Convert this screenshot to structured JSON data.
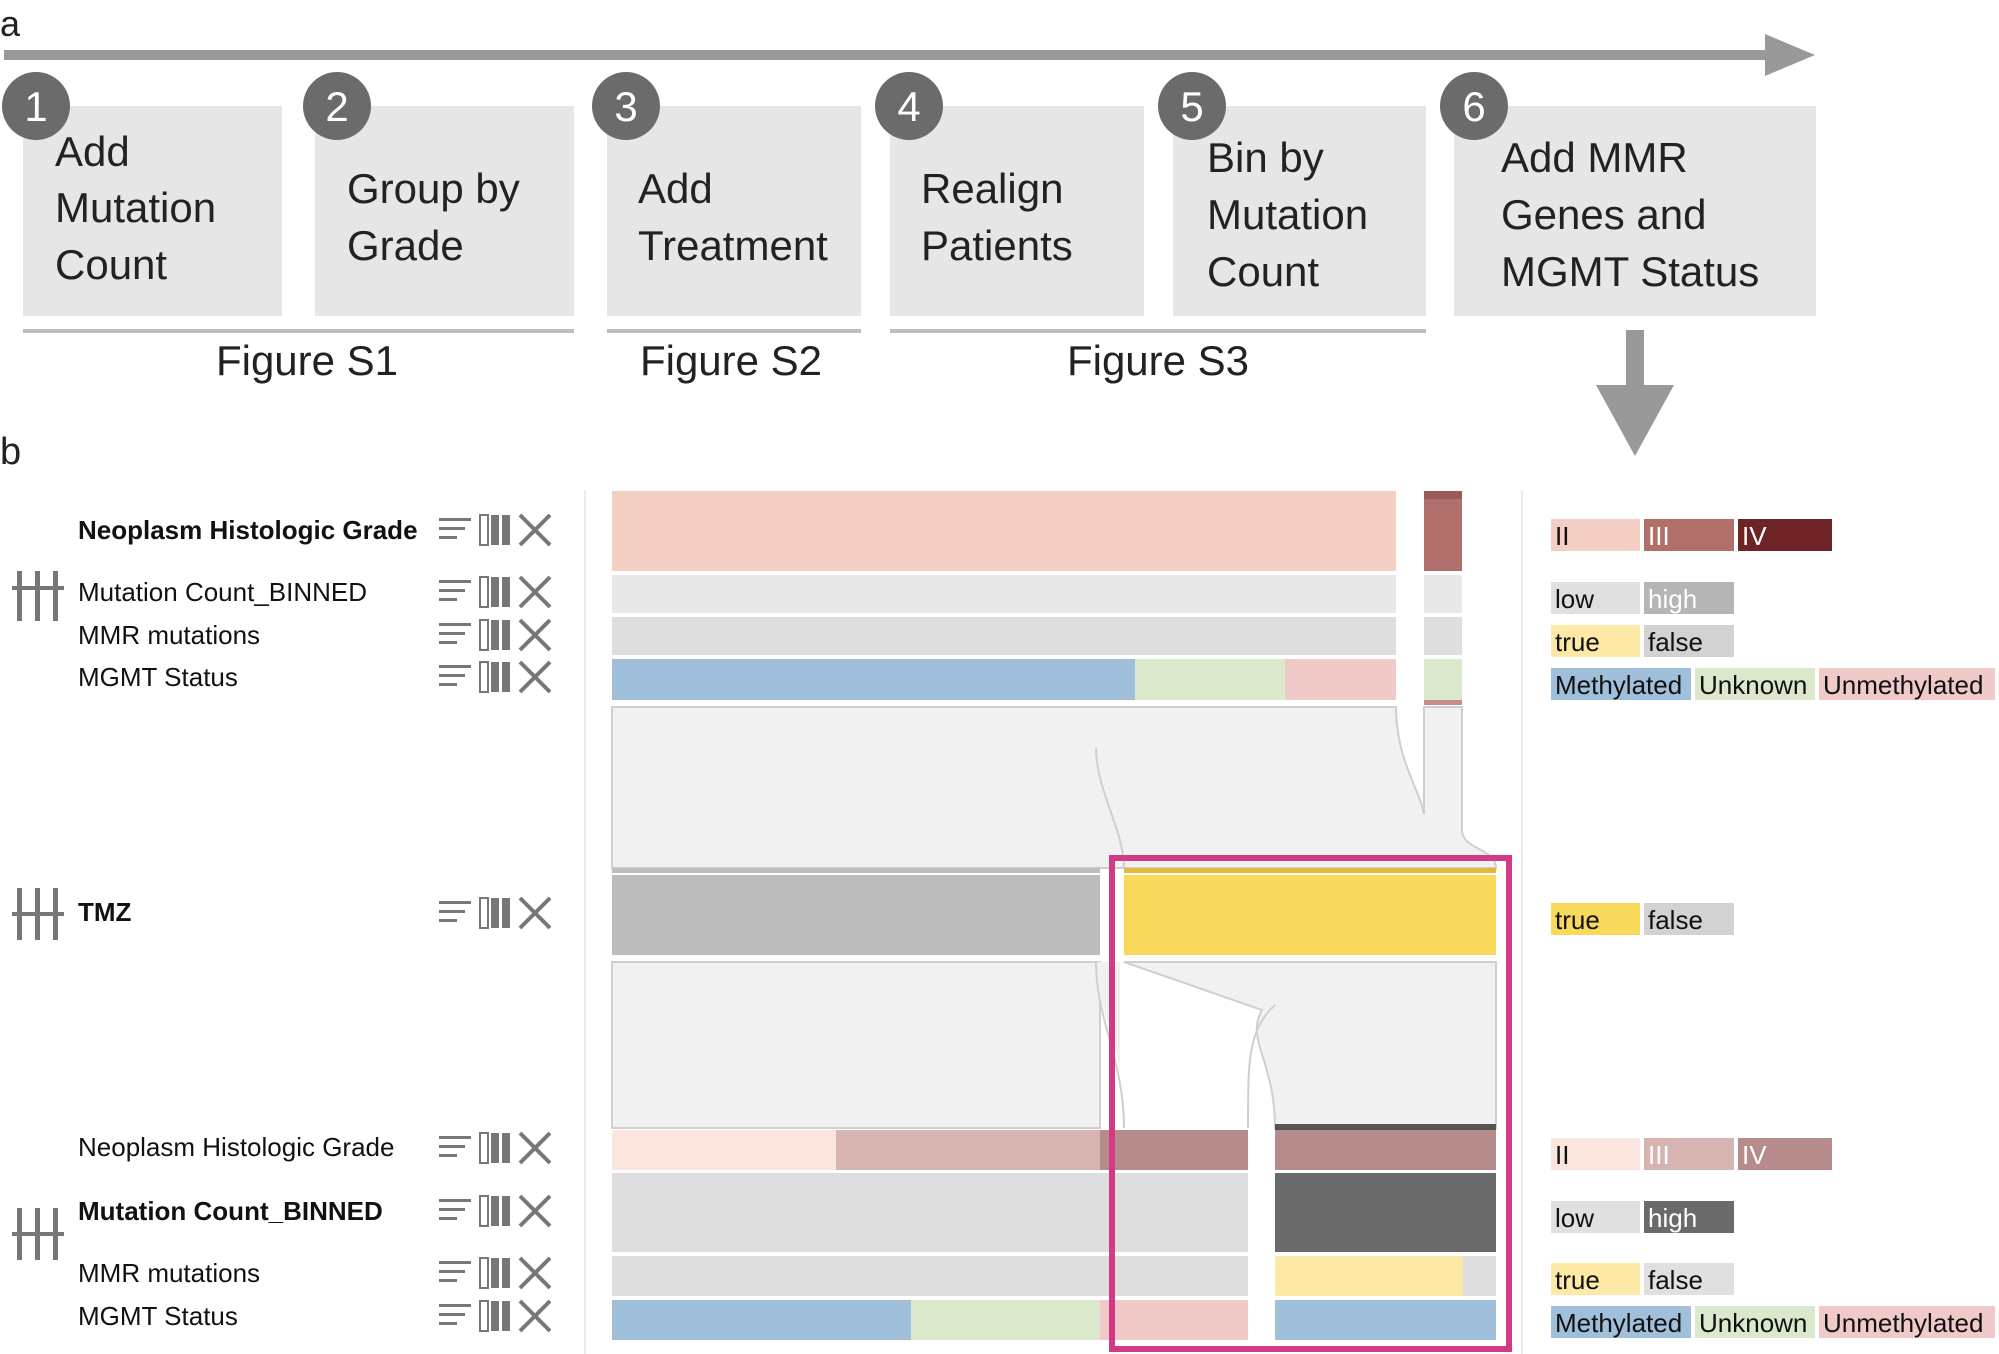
{
  "panel_a": {
    "label": "a",
    "steps": [
      {
        "num": "1",
        "lines": [
          "Add",
          "Mutation",
          "Count"
        ]
      },
      {
        "num": "2",
        "lines": [
          "Group by",
          "Grade"
        ]
      },
      {
        "num": "3",
        "lines": [
          "Add",
          "Treatment"
        ]
      },
      {
        "num": "4",
        "lines": [
          "Realign",
          "Patients"
        ]
      },
      {
        "num": "5",
        "lines": [
          "Bin by",
          "Mutation",
          "Count"
        ]
      },
      {
        "num": "6",
        "lines": [
          "Add MMR",
          "Genes and",
          "MGMT Status"
        ]
      }
    ],
    "figures": [
      "Figure S1",
      "Figure S2",
      "Figure S3"
    ]
  },
  "panel_b": {
    "label": "b",
    "rows_top": [
      {
        "label": "Neoplasm Histologic Grade",
        "bold": true
      },
      {
        "label": "Mutation Count_BINNED",
        "bold": false
      },
      {
        "label": "MMR mutations",
        "bold": false
      },
      {
        "label": "MGMT Status",
        "bold": false
      }
    ],
    "row_tmz": {
      "label": "TMZ",
      "bold": true
    },
    "rows_bottom": [
      {
        "label": "Neoplasm Histologic Grade",
        "bold": false
      },
      {
        "label": "Mutation Count_BINNED",
        "bold": true
      },
      {
        "label": "MMR mutations",
        "bold": false
      },
      {
        "label": "MGMT Status",
        "bold": false
      }
    ],
    "legends": {
      "grade": [
        "II",
        "III",
        "IV"
      ],
      "mutation": [
        "low",
        "high"
      ],
      "bool": [
        "true",
        "false"
      ],
      "mgmt": [
        "Methylated",
        "Unknown",
        "Unmethylated"
      ]
    },
    "colors": {
      "grade_ii": "#f3d0c3",
      "grade_iii": "#b06f6b",
      "grade_iv": "#6e2326",
      "grade_ii_light": "#fae5df",
      "grade_iii_light": "#d7b4b2",
      "grade_iv_light": "#b68b8c",
      "low": "#e0e0e0",
      "high": "#6a6a6a",
      "true": "#f8d95c",
      "true_light": "#fce9a5",
      "false": "#d2d2d2",
      "methylated": "#a0bfdb",
      "unknown": "#dbe8cc",
      "unmethylated": "#f0c9c9",
      "highlight": "#d33a86"
    }
  }
}
